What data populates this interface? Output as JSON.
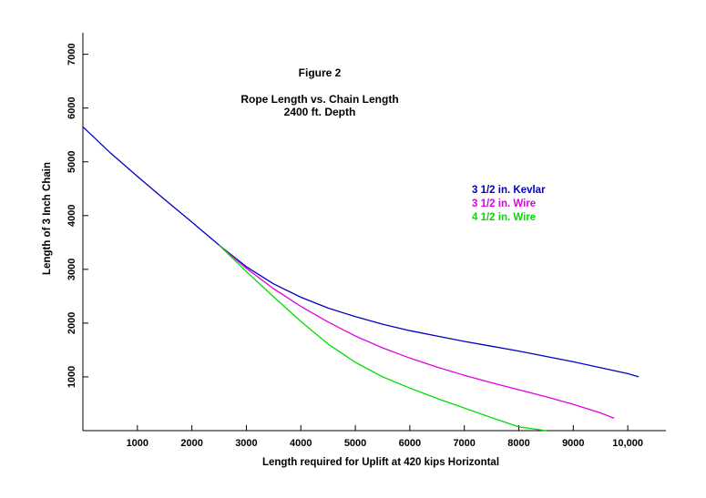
{
  "chart_data": {
    "type": "line",
    "title": "Figure 2",
    "subtitle": [
      "Rope Length vs. Chain Length",
      "2400 ft. Depth"
    ],
    "xlabel": "Length required for Uplift at 420 kips Horizontal",
    "ylabel": "Length of 3 Inch Chain",
    "xlim": [
      0,
      10700
    ],
    "ylim": [
      0,
      7400
    ],
    "x_ticks": [
      1000,
      2000,
      3000,
      4000,
      5000,
      6000,
      7000,
      8000,
      9000,
      10000
    ],
    "x_tick_labels": [
      "1000",
      "2000",
      "3000",
      "4000",
      "5000",
      "6000",
      "7000",
      "8000",
      "9000",
      "10,000"
    ],
    "y_ticks": [
      1000,
      2000,
      3000,
      4000,
      5000,
      6000,
      7000
    ],
    "y_tick_labels": [
      "1000",
      "2000",
      "3000",
      "4000",
      "5000",
      "6000",
      "7000"
    ],
    "grid": false,
    "legend_position": "right",
    "series": [
      {
        "name": "3 1/2 in. Kevlar",
        "color": "#0000c0",
        "x": [
          0,
          500,
          1000,
          1500,
          2000,
          2500,
          3000,
          3500,
          4000,
          4500,
          5000,
          5500,
          6000,
          6500,
          7000,
          7500,
          8000,
          8500,
          9000,
          9500,
          10000,
          10200
        ],
        "y": [
          5650,
          5170,
          4730,
          4300,
          3880,
          3450,
          3050,
          2730,
          2480,
          2280,
          2120,
          1980,
          1860,
          1760,
          1660,
          1570,
          1480,
          1380,
          1280,
          1170,
          1060,
          1000
        ]
      },
      {
        "name": "3 1/2 in. Wire",
        "color": "#e000e0",
        "x": [
          2500,
          3000,
          3500,
          4000,
          4500,
          5000,
          5500,
          6000,
          6500,
          7000,
          7500,
          8000,
          8500,
          9000,
          9500,
          9750
        ],
        "y": [
          3450,
          3020,
          2640,
          2310,
          2020,
          1760,
          1540,
          1350,
          1180,
          1030,
          890,
          760,
          630,
          490,
          330,
          230
        ]
      },
      {
        "name": "4 1/2 in. Wire",
        "color": "#00dd00",
        "x": [
          2500,
          3000,
          3500,
          4000,
          4500,
          5000,
          5500,
          6000,
          6500,
          7000,
          7500,
          8000,
          8500
        ],
        "y": [
          3450,
          2960,
          2490,
          2030,
          1610,
          1270,
          1000,
          790,
          600,
          420,
          240,
          70,
          0
        ]
      }
    ]
  }
}
